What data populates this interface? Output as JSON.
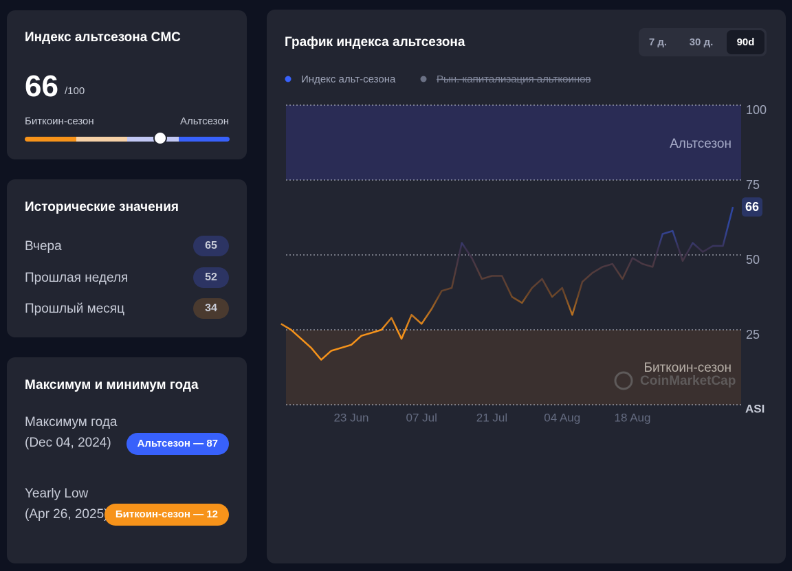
{
  "index_panel": {
    "title": "Индекс альтсезона CMC",
    "value": 66,
    "max": {
      "value": 100,
      "label": "/100"
    },
    "left_label": "Биткоин-сезон",
    "right_label": "Альтсезон"
  },
  "history_panel": {
    "title": "Исторические значения",
    "rows": [
      {
        "label": "Вчера",
        "value": 65
      },
      {
        "label": "Прошлая неделя",
        "value": 52
      },
      {
        "label": "Прошлый месяц",
        "value": 34
      }
    ]
  },
  "year_panel": {
    "title": "Максимум и минимум года",
    "rows": [
      {
        "label": "Максимум года",
        "date": "(Dec 04, 2024)",
        "badge": "Альтсезон — 87"
      },
      {
        "label": "Yearly Low",
        "date": "(Apr 26, 2025)",
        "badge": "Биткоин-сезон — 12"
      }
    ]
  },
  "chart_data": {
    "type": "line",
    "title": "График индекса альтсезона",
    "buttons": [
      "7 д.",
      "30 д.",
      "90d"
    ],
    "active_button": 2,
    "legend": [
      {
        "name": "Индекс альт-сезона",
        "color": "#3861fb"
      },
      {
        "name": "Рын. капитализация альткоинов",
        "color": "#6b7185",
        "hidden": true
      }
    ],
    "y_label": "ASI",
    "watermark": "CoinMarketCap",
    "categories": [
      null,
      null,
      null,
      null,
      null,
      null,
      null,
      "23 Jun",
      null,
      null,
      null,
      null,
      null,
      null,
      "07 Jul",
      null,
      null,
      null,
      null,
      null,
      null,
      "21 Jul",
      null,
      null,
      null,
      null,
      null,
      null,
      "04 Aug",
      null,
      null,
      null,
      null,
      null,
      null,
      "18 Aug",
      null,
      null,
      null,
      null,
      null,
      null,
      null,
      null,
      null,
      null
    ],
    "series": [
      {
        "name": "Индекс альт-сезона",
        "colors": [
          "#f7931a",
          "#3861fb"
        ],
        "values": [
          27,
          25,
          22,
          19,
          15,
          18,
          19,
          20,
          23,
          24,
          25,
          29,
          22,
          30,
          27,
          32,
          38,
          39,
          54,
          49,
          42,
          43,
          43,
          36,
          34,
          39,
          42,
          36,
          39,
          30,
          41,
          44,
          46,
          47,
          42,
          49,
          47,
          46,
          57,
          58,
          48,
          54,
          51,
          53,
          53,
          66
        ]
      }
    ],
    "bands": [
      {
        "name": "Альтсезон",
        "from": 75,
        "to": 100,
        "color": "#2a2c55"
      },
      {
        "name": "Биткоин-сезон",
        "from": 0,
        "to": 25,
        "color": "#3a302f"
      }
    ],
    "ylim": [
      0,
      100
    ],
    "yticks": [
      25,
      50,
      75,
      100
    ],
    "grid": true
  }
}
